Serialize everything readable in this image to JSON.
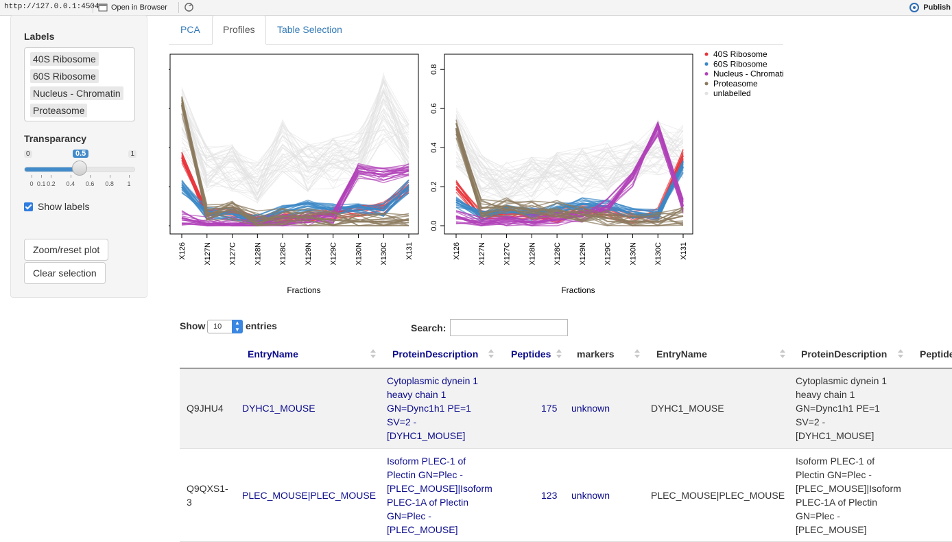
{
  "browser": {
    "url": "http://127.0.0.1:4504",
    "open_in_browser": "Open in Browser",
    "publish": "Publish"
  },
  "sidebar": {
    "labels_title": "Labels",
    "labels": [
      "40S Ribosome",
      "60S Ribosome",
      "Nucleus - Chromatin",
      "Proteasome"
    ],
    "transparency_title": "Transparancy",
    "slider": {
      "min": "0",
      "max": "1",
      "value": "0.5",
      "value_fraction": 0.5,
      "ticks": [
        "0",
        "0.1",
        "0.2",
        "0.4",
        "0.6",
        "0.8",
        "1"
      ]
    },
    "show_labels": "Show labels",
    "show_labels_checked": true,
    "zoom_button": "Zoom/reset plot",
    "clear_button": "Clear selection"
  },
  "tabs": [
    {
      "label": "PCA",
      "active": false
    },
    {
      "label": "Profiles",
      "active": true
    },
    {
      "label": "Table Selection",
      "active": false
    }
  ],
  "plots": {
    "xlabel": "Fractions",
    "y_ticks": [
      "0.0",
      "0.2",
      "0.4",
      "0.6",
      "0.8"
    ],
    "fractions": [
      "X126",
      "X127N",
      "X127C",
      "X128N",
      "X128C",
      "X129N",
      "X129C",
      "X130N",
      "X130C",
      "X131"
    ],
    "legend": [
      {
        "name": "40S Ribosome",
        "color": "#e8343a"
      },
      {
        "name": "60S Ribosome",
        "color": "#3a88c6"
      },
      {
        "name": "Nucleus - Chromati",
        "color": "#b040b8"
      },
      {
        "name": "Proteasome",
        "color": "#8c7a5e"
      },
      {
        "name": "unlabelled",
        "color": "#e2e2e2"
      }
    ]
  },
  "chart_data": [
    {
      "type": "line",
      "xlabel": "Fractions",
      "x": [
        "X126",
        "X127N",
        "X127C",
        "X128N",
        "X128C",
        "X129N",
        "X129C",
        "X130N",
        "X130C",
        "X131"
      ],
      "ylim": [
        0,
        0.85
      ],
      "series": [
        {
          "name": "unlabelled",
          "values": [
            0.55,
            0.3,
            0.3,
            0.22,
            0.4,
            0.3,
            0.32,
            0.35,
            0.6,
            0.4
          ]
        },
        {
          "name": "40S Ribosome",
          "values": [
            0.35,
            0.05,
            0.07,
            0.03,
            0.04,
            0.05,
            0.06,
            0.08,
            0.09,
            0.2
          ]
        },
        {
          "name": "60S Ribosome",
          "values": [
            0.2,
            0.06,
            0.06,
            0.03,
            0.07,
            0.1,
            0.08,
            0.1,
            0.08,
            0.2
          ]
        },
        {
          "name": "Nucleus - Chromati",
          "values": [
            0.04,
            0.01,
            0.01,
            0.01,
            0.02,
            0.03,
            0.05,
            0.28,
            0.26,
            0.28
          ]
        },
        {
          "name": "Proteasome",
          "values": [
            0.62,
            0.06,
            0.08,
            0.03,
            0.05,
            0.04,
            0.03,
            0.02,
            0.02,
            0.03
          ]
        }
      ]
    },
    {
      "type": "line",
      "xlabel": "Fractions",
      "x": [
        "X126",
        "X127N",
        "X127C",
        "X128N",
        "X128C",
        "X129N",
        "X129C",
        "X130N",
        "X130C",
        "X131"
      ],
      "ylim": [
        0,
        0.85
      ],
      "series": [
        {
          "name": "unlabelled",
          "values": [
            0.45,
            0.25,
            0.22,
            0.24,
            0.26,
            0.28,
            0.3,
            0.32,
            0.4,
            0.38
          ]
        },
        {
          "name": "40S Ribosome",
          "values": [
            0.2,
            0.05,
            0.06,
            0.06,
            0.05,
            0.07,
            0.07,
            0.04,
            0.06,
            0.36
          ]
        },
        {
          "name": "60S Ribosome",
          "values": [
            0.12,
            0.05,
            0.07,
            0.06,
            0.09,
            0.11,
            0.1,
            0.06,
            0.06,
            0.3
          ]
        },
        {
          "name": "Nucleus - Chromati",
          "values": [
            0.05,
            0.01,
            0.02,
            0.02,
            0.03,
            0.05,
            0.1,
            0.24,
            0.5,
            0.1
          ]
        },
        {
          "name": "Proteasome",
          "values": [
            0.5,
            0.09,
            0.1,
            0.08,
            0.08,
            0.06,
            0.04,
            0.02,
            0.02,
            0.05
          ]
        }
      ]
    }
  ],
  "datatable": {
    "show_label": "Show",
    "entries_value": "10",
    "entries_label": "entries",
    "search_label": "Search:",
    "search_value": "",
    "columns": [
      "EntryName",
      "ProteinDescription",
      "Peptides",
      "markers",
      "EntryName",
      "ProteinDescription",
      "Peptide"
    ],
    "rows": [
      {
        "id": "Q9JHU4",
        "entry": "DYHC1_MOUSE",
        "desc_lines": [
          "Cytoplasmic dynein 1",
          "heavy chain 1",
          "GN=Dync1h1 PE=1",
          "SV=2 -",
          "[DYHC1_MOUSE]"
        ],
        "peptides": "175",
        "markers": "unknown",
        "entry2": "DYHC1_MOUSE",
        "desc2_lines": [
          "Cytoplasmic dynein 1",
          "heavy chain 1",
          "GN=Dync1h1 PE=1",
          "SV=2 -",
          "[DYHC1_MOUSE]"
        ]
      },
      {
        "id_lines": [
          "Q9QXS1-",
          "3"
        ],
        "entry": "PLEC_MOUSE|PLEC_MOUSE",
        "desc_lines": [
          "Isoform PLEC-1 of",
          "Plectin GN=Plec -",
          "[PLEC_MOUSE]|Isoform",
          "PLEC-1A of Plectin",
          "GN=Plec -",
          "[PLEC_MOUSE]"
        ],
        "peptides": "123",
        "markers": "unknown",
        "entry2": "PLEC_MOUSE|PLEC_MOUSE",
        "desc2_lines": [
          "Isoform PLEC-1 of",
          "Plectin GN=Plec -",
          "[PLEC_MOUSE]|Isoform",
          "PLEC-1A of Plectin",
          "GN=Plec -",
          "[PLEC_MOUSE]"
        ]
      }
    ]
  }
}
